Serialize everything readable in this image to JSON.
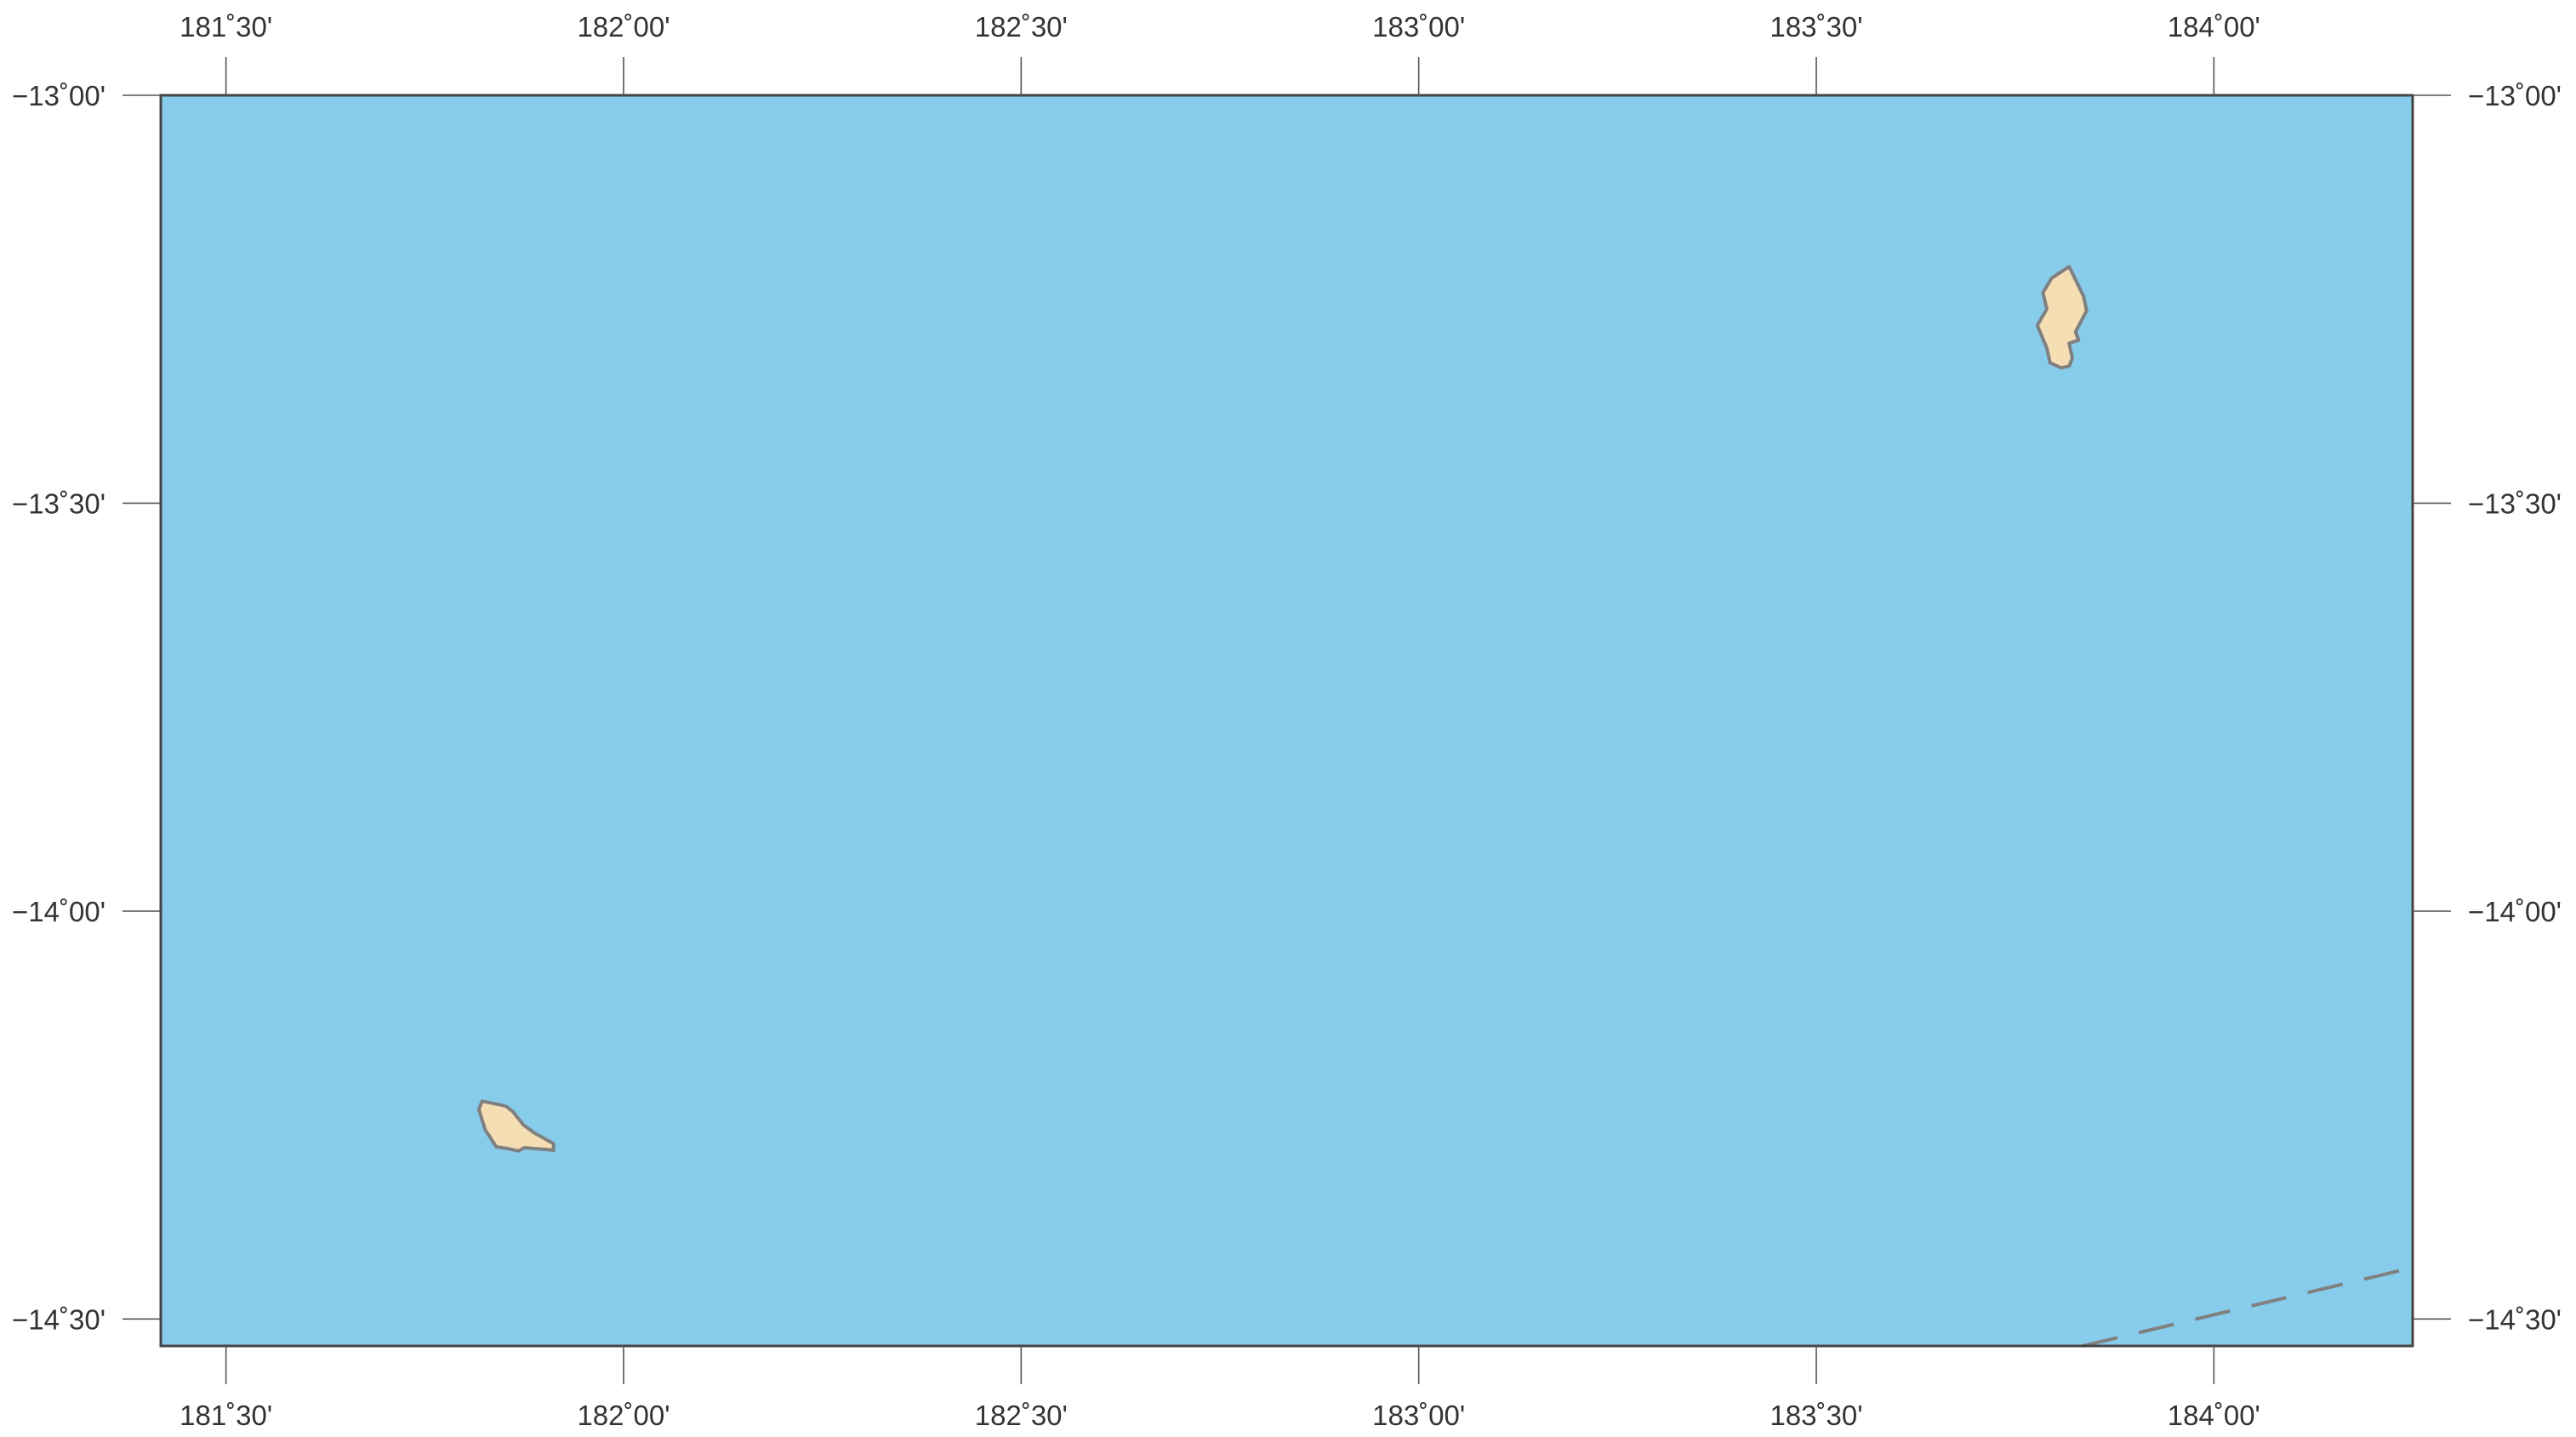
{
  "colors": {
    "ocean": "#87CDEB",
    "land": "#F5DEB3",
    "coastline": "#808080",
    "frame": "#444444",
    "boundary": "#808080"
  },
  "extent": {
    "lon_min": 181.418,
    "lon_max": 184.25,
    "lat_min": -14.533,
    "lat_max": -13.0
  },
  "top_ticks": [
    {
      "label": "181˚30'",
      "lon": 181.5
    },
    {
      "label": "182˚00'",
      "lon": 182.0
    },
    {
      "label": "182˚30'",
      "lon": 182.5
    },
    {
      "label": "183˚00'",
      "lon": 183.0
    },
    {
      "label": "183˚30'",
      "lon": 183.5
    },
    {
      "label": "184˚00'",
      "lon": 184.0
    }
  ],
  "bottom_ticks": [
    {
      "label": "181˚30'",
      "lon": 181.5
    },
    {
      "label": "182˚00'",
      "lon": 182.0
    },
    {
      "label": "182˚30'",
      "lon": 182.5
    },
    {
      "label": "183˚00'",
      "lon": 183.0
    },
    {
      "label": "183˚30'",
      "lon": 183.5
    },
    {
      "label": "184˚00'",
      "lon": 184.0
    }
  ],
  "left_ticks": [
    {
      "label": "−13˚00'",
      "lat": -13.0
    },
    {
      "label": "−13˚30'",
      "lat": -13.5
    },
    {
      "label": "−14˚00'",
      "lat": -14.0
    },
    {
      "label": "−14˚30'",
      "lat": -14.5
    }
  ],
  "right_ticks": [
    {
      "label": "−13˚00'",
      "lat": -13.0
    },
    {
      "label": "−13˚30'",
      "lat": -13.5
    },
    {
      "label": "−14˚00'",
      "lat": -14.0
    },
    {
      "label": "−14˚30'",
      "lat": -14.5
    }
  ],
  "islands": [
    {
      "name": "island-northeast",
      "coords": [
        [
          183.818,
          -13.21
        ],
        [
          183.796,
          -13.224
        ],
        [
          183.785,
          -13.242
        ],
        [
          183.79,
          -13.262
        ],
        [
          183.778,
          -13.282
        ],
        [
          183.79,
          -13.31
        ],
        [
          183.794,
          -13.328
        ],
        [
          183.808,
          -13.334
        ],
        [
          183.818,
          -13.332
        ],
        [
          183.822,
          -13.322
        ],
        [
          183.818,
          -13.304
        ],
        [
          183.83,
          -13.3
        ],
        [
          183.826,
          -13.29
        ],
        [
          183.84,
          -13.264
        ],
        [
          183.836,
          -13.246
        ]
      ]
    },
    {
      "name": "island-southwest",
      "coords": [
        [
          181.822,
          -14.233
        ],
        [
          181.818,
          -14.243
        ],
        [
          181.826,
          -14.268
        ],
        [
          181.84,
          -14.289
        ],
        [
          181.854,
          -14.291
        ],
        [
          181.868,
          -14.294
        ],
        [
          181.875,
          -14.29
        ],
        [
          181.9,
          -14.292
        ],
        [
          181.912,
          -14.293
        ],
        [
          181.912,
          -14.285
        ],
        [
          181.888,
          -14.272
        ],
        [
          181.874,
          -14.262
        ],
        [
          181.861,
          -14.246
        ],
        [
          181.852,
          -14.239
        ],
        [
          181.843,
          -14.237
        ]
      ]
    }
  ],
  "boundary_line": {
    "coords": [
      [
        183.835,
        -14.533
      ],
      [
        184.25,
        -14.437
      ]
    ]
  }
}
